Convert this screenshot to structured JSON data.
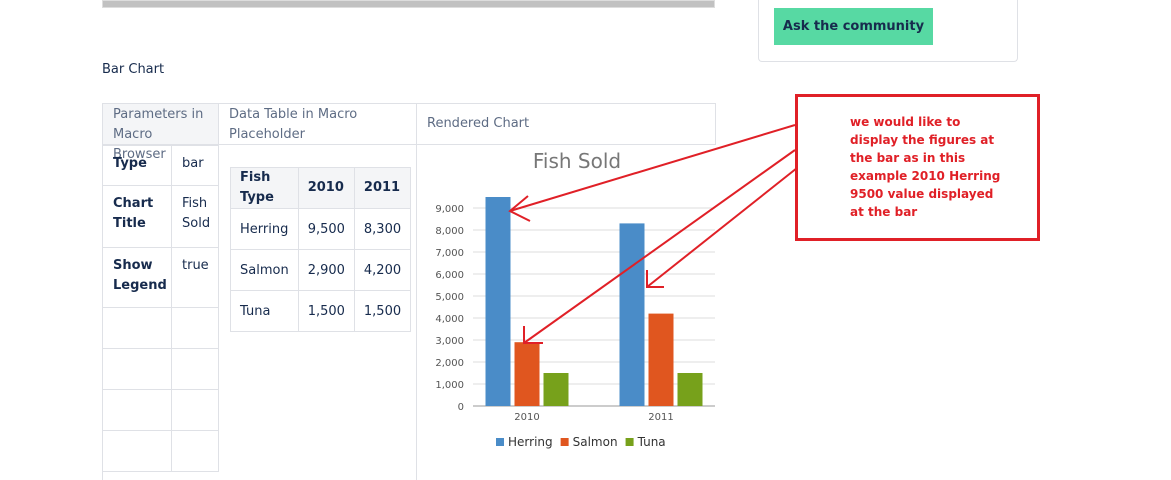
{
  "page": {
    "button": "Ask the community",
    "heading": "Bar Chart",
    "columns": [
      "Parameters in Macro Browser",
      "Data Table in Macro Placeholder",
      "Rendered Chart"
    ],
    "params": [
      [
        "Type",
        "bar"
      ],
      [
        "Chart Title",
        "Fish Sold"
      ],
      [
        "Show Legend",
        "true"
      ]
    ],
    "table": {
      "header": [
        "Fish Type",
        "2010",
        "2011"
      ],
      "rows": [
        [
          "Herring",
          "9,500",
          "8,300"
        ],
        [
          "Salmon",
          "2,900",
          "4,200"
        ],
        [
          "Tuna",
          "1,500",
          "1,500"
        ]
      ]
    },
    "note": [
      "we would like to",
      "display the figures at",
      "the bar  as in this",
      "example 2010 Herring",
      "9500 value displayed",
      "at the bar"
    ]
  },
  "chart_data": {
    "type": "bar",
    "title": "Fish Sold",
    "categories": [
      "2010",
      "2011"
    ],
    "series": [
      {
        "name": "Herring",
        "color": "#4a8cc8",
        "values": [
          9500,
          8300
        ]
      },
      {
        "name": "Salmon",
        "color": "#e0561f",
        "values": [
          2900,
          4200
        ]
      },
      {
        "name": "Tuna",
        "color": "#77a11b",
        "values": [
          1500,
          1500
        ]
      }
    ],
    "ylim": [
      0,
      9500
    ],
    "yticks": [
      0,
      {
        "value": 1000,
        "label": "1,000"
      },
      {
        "value": 2000,
        "label": "2,000"
      },
      {
        "value": 3000,
        "label": "3,000"
      },
      {
        "value": 4000,
        "label": "4,000"
      },
      {
        "value": 5000,
        "label": "5,000"
      },
      {
        "value": 6000,
        "label": "6,000"
      },
      {
        "value": 7000,
        "label": "7,000"
      },
      {
        "value": 8000,
        "label": "8,000"
      },
      {
        "value": 9000,
        "label": "9,000"
      }
    ],
    "grid": true,
    "legend": "bottom"
  }
}
